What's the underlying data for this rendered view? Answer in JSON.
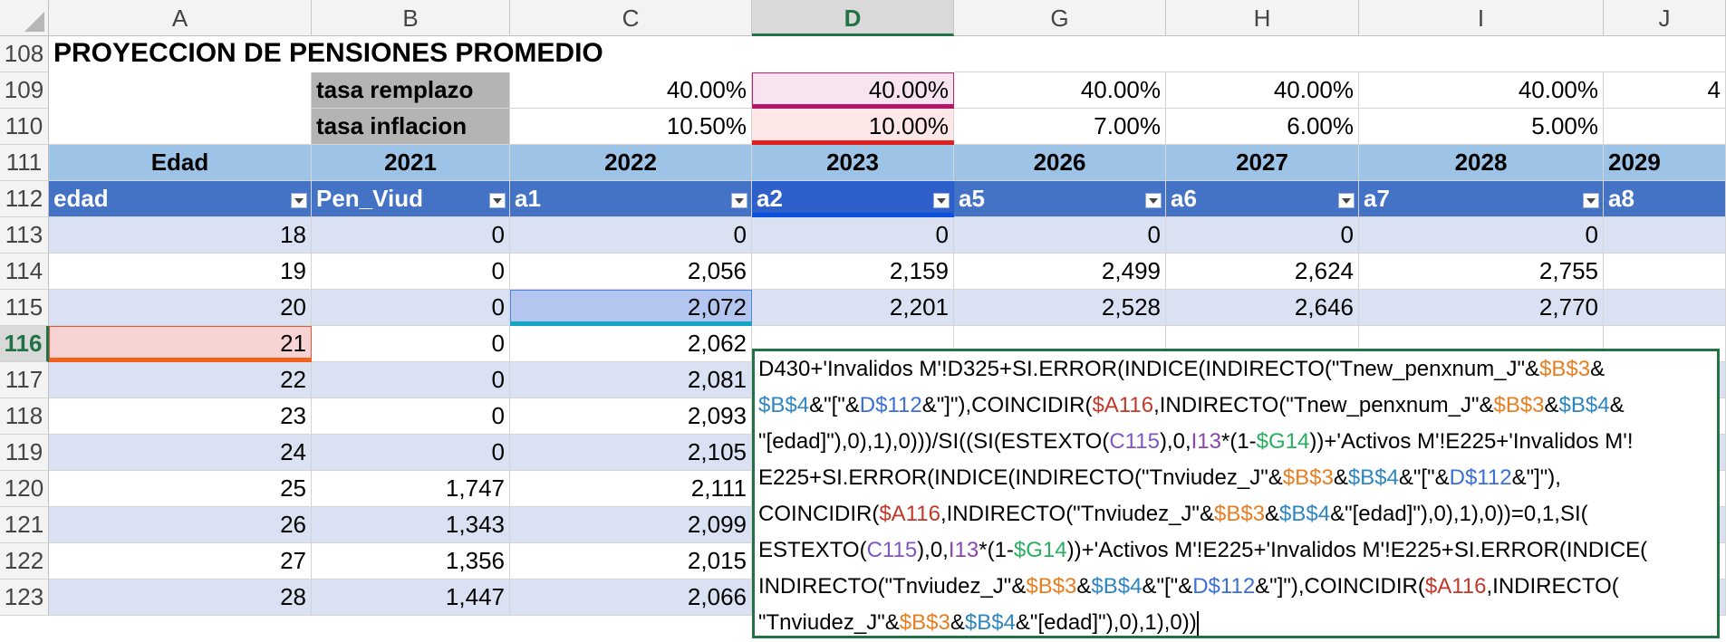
{
  "columns": [
    {
      "id": "A",
      "label": "A"
    },
    {
      "id": "B",
      "label": "B"
    },
    {
      "id": "C",
      "label": "C"
    },
    {
      "id": "D",
      "label": "D"
    },
    {
      "id": "G",
      "label": "G"
    },
    {
      "id": "H",
      "label": "H"
    },
    {
      "id": "I",
      "label": "I"
    },
    {
      "id": "J",
      "label": "J"
    }
  ],
  "rows": [
    "108",
    "109",
    "110",
    "111",
    "112",
    "113",
    "114",
    "115",
    "116",
    "117",
    "118",
    "119",
    "120",
    "121",
    "122",
    "123"
  ],
  "title": "PROYECCION DE PENSIONES PROMEDIO",
  "params": {
    "tasa_remplazo_label": "tasa remplazo",
    "tasa_inflacion_label": "tasa inflacion",
    "remplazo": [
      "40.00%",
      "40.00%",
      "40.00%",
      "40.00%",
      "40.00%",
      "4"
    ],
    "inflacion": [
      "10.50%",
      "10.00%",
      "7.00%",
      "6.00%",
      "5.00%",
      ""
    ]
  },
  "years": [
    "Edad",
    "2021",
    "2022",
    "2023",
    "2026",
    "2027",
    "2028",
    "2029"
  ],
  "table_headers": [
    "edad",
    "Pen_Viud",
    "a1",
    "a2",
    "a5",
    "a6",
    "a7",
    "a8"
  ],
  "data_rows": [
    [
      "18",
      "0",
      "0",
      "0",
      "0",
      "0",
      "0"
    ],
    [
      "19",
      "0",
      "2,056",
      "2,159",
      "2,499",
      "2,624",
      "2,755"
    ],
    [
      "20",
      "0",
      "2,072",
      "2,201",
      "2,528",
      "2,646",
      "2,770"
    ],
    [
      "21",
      "0",
      "2,062",
      "",
      "",
      "",
      ""
    ],
    [
      "22",
      "0",
      "2,081",
      "",
      "",
      "",
      ""
    ],
    [
      "23",
      "0",
      "2,093",
      "",
      "",
      "",
      ""
    ],
    [
      "24",
      "0",
      "2,105",
      "",
      "",
      "",
      ""
    ],
    [
      "25",
      "1,747",
      "2,111",
      "",
      "",
      "",
      ""
    ],
    [
      "26",
      "1,343",
      "2,099",
      "",
      "",
      "",
      ""
    ],
    [
      "27",
      "1,356",
      "2,015",
      "",
      "",
      "",
      ""
    ],
    [
      "28",
      "1,447",
      "2,066",
      "",
      "",
      "",
      ""
    ]
  ],
  "formula_lines": [
    [
      [
        "D430+'Invalidos M'!D325+SI.ERROR(INDICE(INDIRECTO(\"Tnew_penxnum_J\"&",
        "#000000"
      ],
      [
        "$B$3",
        "#e67e22"
      ],
      [
        "&",
        "#000000"
      ]
    ],
    [
      [
        "$B$4",
        "#2e86c1"
      ],
      [
        "&\"[\"&",
        "#000000"
      ],
      [
        "D$112",
        "#3b6fd6"
      ],
      [
        "&\"]\"),COINCIDIR(",
        "#000000"
      ],
      [
        "$A116",
        "#c0392b"
      ],
      [
        ",INDIRECTO(\"Tnew_penxnum_J\"&",
        "#000000"
      ],
      [
        "$B$3",
        "#e67e22"
      ],
      [
        "&",
        "#000000"
      ],
      [
        "$B$4",
        "#2e86c1"
      ],
      [
        "&",
        "#000000"
      ]
    ],
    [
      [
        "\"[edad]\"),0),1),0)))/SI((SI(ESTEXTO(",
        "#000000"
      ],
      [
        "C115",
        "#7e57c2"
      ],
      [
        "),0,",
        "#000000"
      ],
      [
        "I13",
        "#8e44ad"
      ],
      [
        "*(1-",
        "#000000"
      ],
      [
        "$G14",
        "#27ae60"
      ],
      [
        "))+'Activos M'!E225+'Invalidos M'!",
        "#000000"
      ]
    ],
    [
      [
        "E225+SI.ERROR(INDICE(INDIRECTO(\"Tnviudez_J\"&",
        "#000000"
      ],
      [
        "$B$3",
        "#e67e22"
      ],
      [
        "&",
        "#000000"
      ],
      [
        "$B$4",
        "#2e86c1"
      ],
      [
        "&\"[\"&",
        "#000000"
      ],
      [
        "D$112",
        "#3b6fd6"
      ],
      [
        "&\"]\"),",
        "#000000"
      ]
    ],
    [
      [
        "COINCIDIR(",
        "#000000"
      ],
      [
        "$A116",
        "#c0392b"
      ],
      [
        ",INDIRECTO(\"Tnviudez_J\"&",
        "#000000"
      ],
      [
        "$B$3",
        "#e67e22"
      ],
      [
        "&",
        "#000000"
      ],
      [
        "$B$4",
        "#2e86c1"
      ],
      [
        "&\"[edad]\"),0),1),0))=0,1,SI(",
        "#000000"
      ]
    ],
    [
      [
        "ESTEXTO(",
        "#000000"
      ],
      [
        "C115",
        "#7e57c2"
      ],
      [
        "),0,",
        "#000000"
      ],
      [
        "I13",
        "#8e44ad"
      ],
      [
        "*(1-",
        "#000000"
      ],
      [
        "$G14",
        "#27ae60"
      ],
      [
        "))+'Activos M'!E225+'Invalidos M'!E225+SI.ERROR(INDICE(",
        "#000000"
      ]
    ],
    [
      [
        "INDIRECTO(\"Tnviudez_J\"&",
        "#000000"
      ],
      [
        "$B$3",
        "#e67e22"
      ],
      [
        "&",
        "#000000"
      ],
      [
        "$B$4",
        "#2e86c1"
      ],
      [
        "&\"[\"&",
        "#000000"
      ],
      [
        "D$112",
        "#3b6fd6"
      ],
      [
        "&\"]\"),COINCIDIR(",
        "#000000"
      ],
      [
        "$A116",
        "#c0392b"
      ],
      [
        ",INDIRECTO(",
        "#000000"
      ]
    ],
    [
      [
        "\"Tnviudez_J\"&",
        "#000000"
      ],
      [
        "$B$3",
        "#e67e22"
      ],
      [
        "&",
        "#000000"
      ],
      [
        "$B$4",
        "#2e86c1"
      ],
      [
        "&\"[edad]\"),0),1),0))",
        "#000000"
      ]
    ]
  ],
  "colors": {
    "table_header": "#4472c4",
    "band": "#d9e1f2",
    "year_header": "#9dc3e6",
    "param_label": "#b4b4b4",
    "edit_border": "#217346"
  }
}
